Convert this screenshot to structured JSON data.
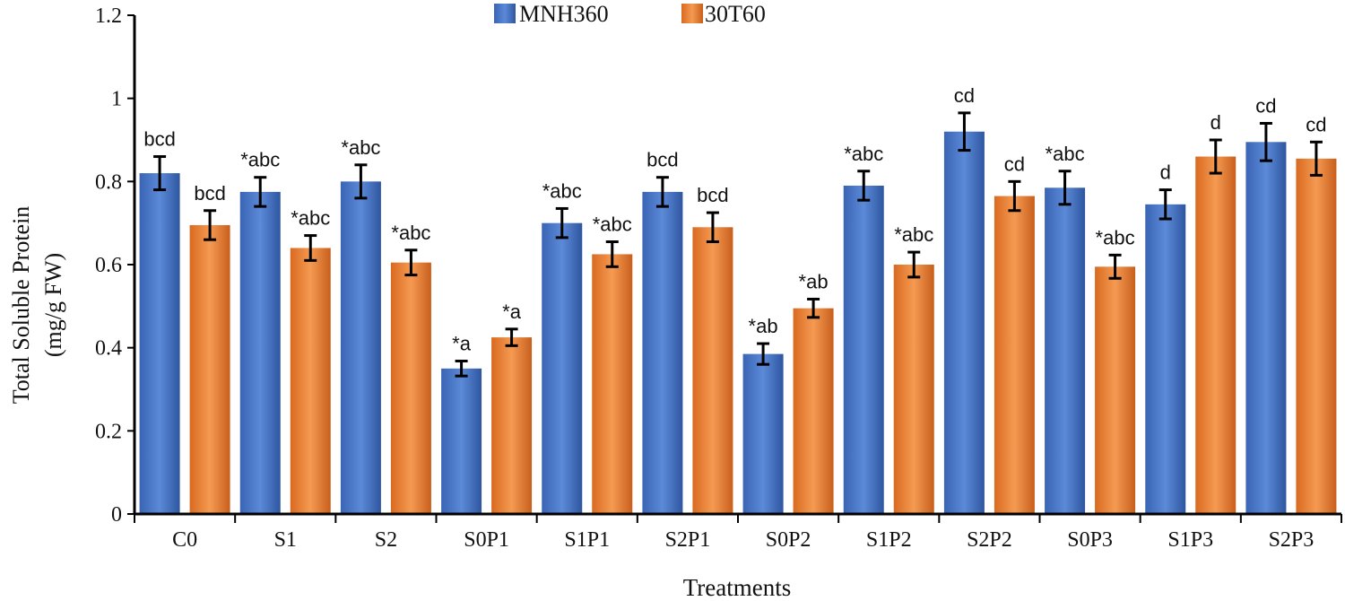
{
  "chart_data": {
    "type": "bar",
    "title": "",
    "xlabel": "Treatments",
    "ylabel": "Total Soluble Protein",
    "ylabel_unit": "(mg/g FW)",
    "ylim": [
      0,
      1.2
    ],
    "yticks": [
      "0",
      "0.2",
      "0.4",
      "0.6",
      "0.8",
      "1",
      "1.2"
    ],
    "grid": false,
    "legend_position": "top-center",
    "categories": [
      "C0",
      "S1",
      "S2",
      "S0P1",
      "S1P1",
      "S2P1",
      "S0P2",
      "S1P2",
      "S2P2",
      "S0P3",
      "S1P3",
      "S2P3"
    ],
    "series": [
      {
        "name": "MNH360",
        "color": "#4472C4",
        "values": [
          0.82,
          0.775,
          0.8,
          0.35,
          0.7,
          0.775,
          0.385,
          0.79,
          0.92,
          0.785,
          0.745,
          0.895
        ],
        "errors": [
          0.04,
          0.035,
          0.04,
          0.018,
          0.035,
          0.035,
          0.025,
          0.035,
          0.045,
          0.04,
          0.035,
          0.045
        ],
        "labels": [
          "bcd",
          "*abc",
          "*abc",
          "*a",
          "*abc",
          "bcd",
          "*ab",
          "*abc",
          "cd",
          "*abc",
          "d",
          "cd"
        ]
      },
      {
        "name": "30T60",
        "color": "#ED7D31",
        "values": [
          0.695,
          0.64,
          0.605,
          0.425,
          0.625,
          0.69,
          0.495,
          0.6,
          0.765,
          0.595,
          0.86,
          0.855
        ],
        "errors": [
          0.035,
          0.03,
          0.03,
          0.02,
          0.03,
          0.035,
          0.022,
          0.03,
          0.035,
          0.028,
          0.04,
          0.04
        ],
        "labels": [
          "bcd",
          "*abc",
          "*abc",
          "*a",
          "*abc",
          "bcd",
          "*ab",
          "*abc",
          "cd",
          "*abc",
          "d",
          "cd"
        ]
      }
    ]
  }
}
